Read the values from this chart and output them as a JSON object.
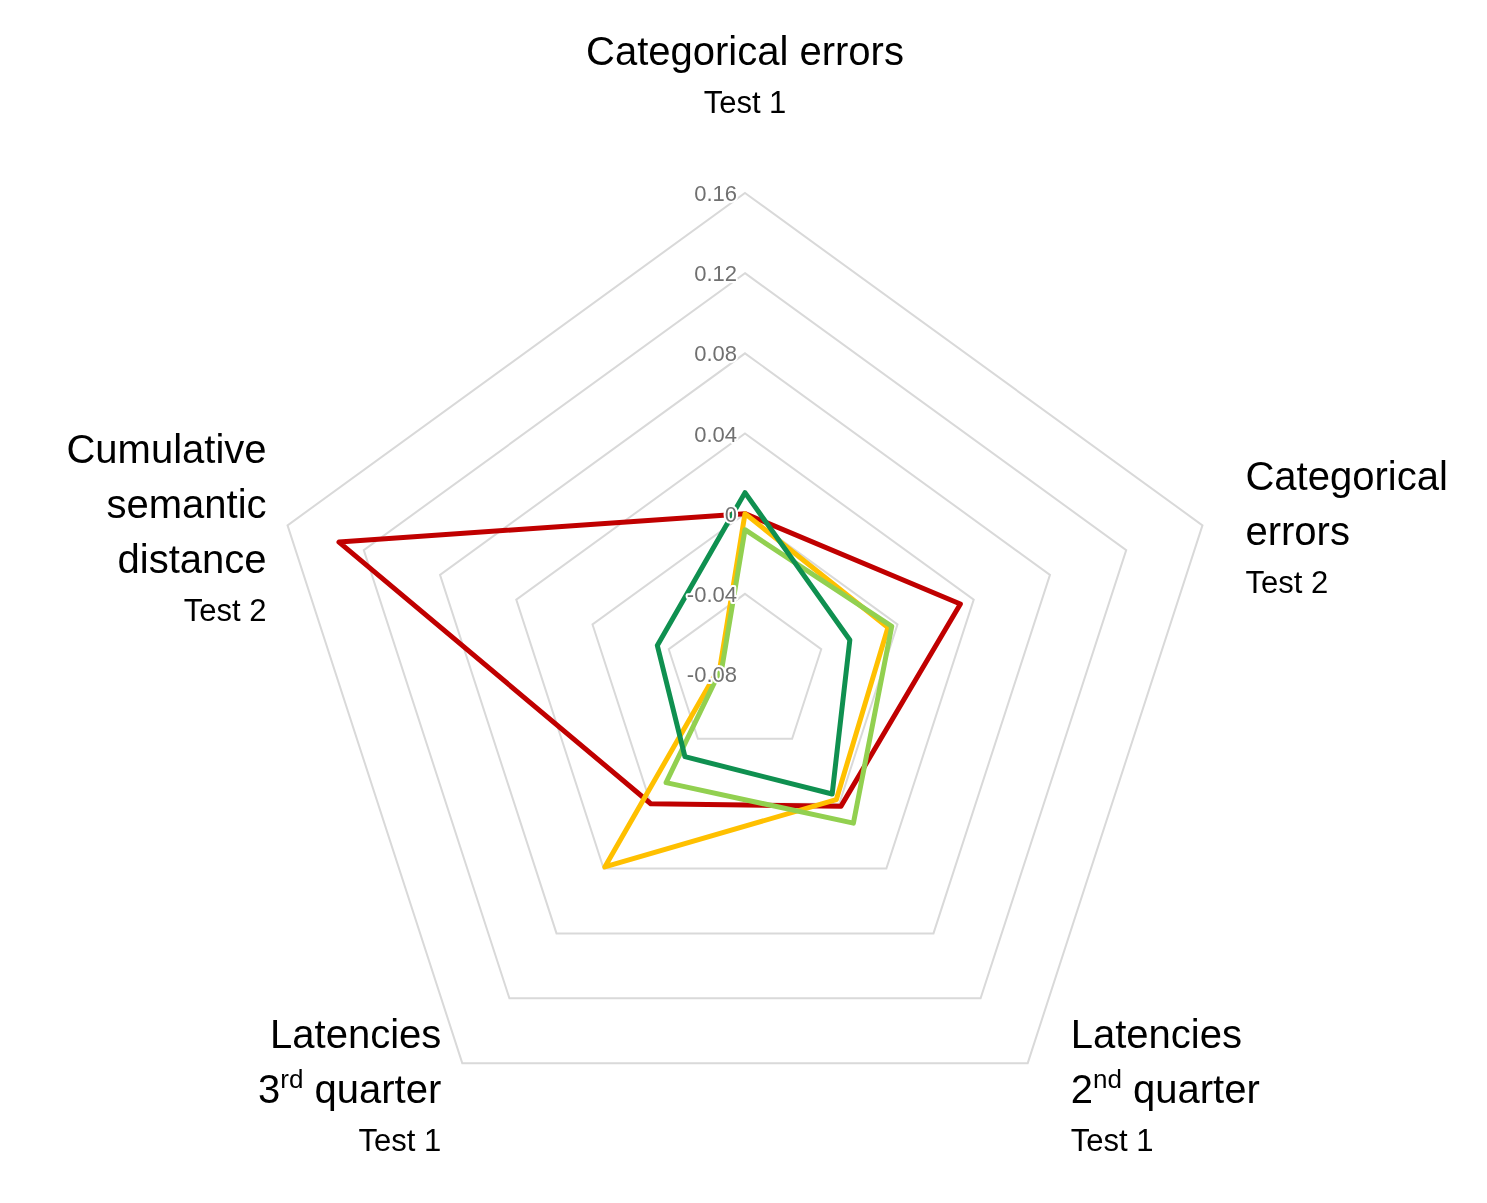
{
  "chart_data": {
    "type": "radar",
    "categories": [
      "Categorical errors\nTest 1",
      "Categorical\nerrors\nTest 2",
      "Latencies\n2$^{nd}$ quarter\nTest 1",
      "Latencies\n3$^{rd}$ quarter\nTest 1",
      "Cumulative\nsemantic\ndistance\nTest 2"
    ],
    "ylim": [
      -0.08,
      0.16
    ],
    "yticks": [
      -0.08,
      -0.04,
      0,
      0.04,
      0.08,
      0.12,
      0.16
    ],
    "grid": true,
    "marker": "none",
    "series": [
      {
        "color": "#c00000",
        "values": [
          0.0,
          0.033,
          0.0015,
          0.0,
          0.133
        ]
      },
      {
        "color": "#ffc000",
        "values": [
          0.0,
          -0.005,
          -0.0025,
          0.039,
          -0.067
        ]
      },
      {
        "color": "#92d050",
        "values": [
          -0.008,
          -0.003,
          0.012,
          -0.013,
          -0.068
        ]
      },
      {
        "color": "#0f9050",
        "values": [
          0.0105,
          -0.025,
          -0.006,
          -0.029,
          -0.034
        ]
      }
    ]
  }
}
